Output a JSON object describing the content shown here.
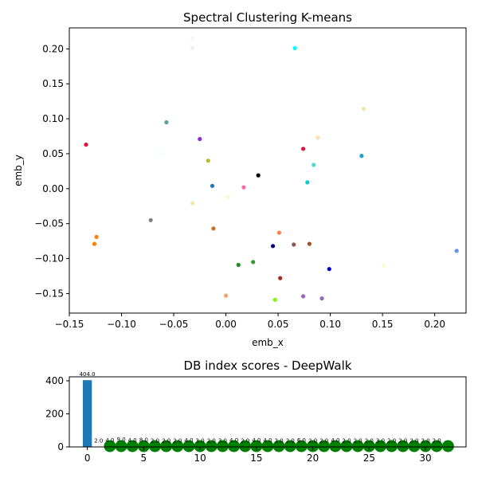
{
  "chart_data": [
    {
      "type": "scatter",
      "title": "Spectral Clustering K-means",
      "xlabel": "emb_x",
      "ylabel": "emb_y",
      "xlim": [
        -0.15,
        0.23
      ],
      "ylim": [
        -0.178,
        0.23
      ],
      "xticks": [
        -0.15,
        -0.1,
        -0.05,
        0.0,
        0.05,
        0.1,
        0.15,
        0.2
      ],
      "xtick_labels": [
        "−0.15",
        "−0.10",
        "−0.05",
        "0.00",
        "0.05",
        "0.10",
        "0.15",
        "0.20"
      ],
      "yticks": [
        -0.15,
        -0.1,
        -0.05,
        0.0,
        0.05,
        0.1,
        0.15,
        0.2
      ],
      "ytick_labels": [
        "−0.15",
        "−0.10",
        "−0.05",
        "0.00",
        "0.05",
        "0.10",
        "0.15",
        "0.20"
      ],
      "grid": false,
      "points": [
        {
          "x": -0.032,
          "y": 0.215,
          "color": "#f5f5f5"
        },
        {
          "x": -0.032,
          "y": 0.201,
          "color": "#f0f0f0"
        },
        {
          "x": 0.066,
          "y": 0.201,
          "color": "#00ffff"
        },
        {
          "x": 0.132,
          "y": 0.114,
          "color": "#eee8aa"
        },
        {
          "x": -0.057,
          "y": 0.095,
          "color": "#5f9ea0"
        },
        {
          "x": -0.134,
          "y": 0.063,
          "color": "#dc143c"
        },
        {
          "x": -0.025,
          "y": 0.071,
          "color": "#8a2be2"
        },
        {
          "x": 0.088,
          "y": 0.073,
          "color": "#ffdead"
        },
        {
          "x": 0.074,
          "y": 0.057,
          "color": "#dc143c"
        },
        {
          "x": -0.063,
          "y": 0.051,
          "color": "#f0ffff"
        },
        {
          "x": 0.13,
          "y": 0.047,
          "color": "#1fa0d0"
        },
        {
          "x": -0.017,
          "y": 0.04,
          "color": "#bdb720"
        },
        {
          "x": 0.084,
          "y": 0.034,
          "color": "#40e0d0"
        },
        {
          "x": 0.031,
          "y": 0.019,
          "color": "#000000"
        },
        {
          "x": 0.078,
          "y": 0.009,
          "color": "#00ced1"
        },
        {
          "x": -0.013,
          "y": 0.004,
          "color": "#1f77b4"
        },
        {
          "x": 0.017,
          "y": 0.002,
          "color": "#ff69b4"
        },
        {
          "x": 0.002,
          "y": -0.012,
          "color": "#fffacd"
        },
        {
          "x": -0.032,
          "y": -0.021,
          "color": "#eee8aa"
        },
        {
          "x": -0.072,
          "y": -0.045,
          "color": "#808080"
        },
        {
          "x": -0.012,
          "y": -0.057,
          "color": "#d2691e"
        },
        {
          "x": 0.051,
          "y": -0.063,
          "color": "#ff7f50"
        },
        {
          "x": -0.124,
          "y": -0.069,
          "color": "#ff7f0e"
        },
        {
          "x": -0.126,
          "y": -0.079,
          "color": "#ff7f0e"
        },
        {
          "x": 0.065,
          "y": -0.08,
          "color": "#8c564b"
        },
        {
          "x": 0.08,
          "y": -0.079,
          "color": "#a0522d"
        },
        {
          "x": 0.045,
          "y": -0.082,
          "color": "#000080"
        },
        {
          "x": 0.221,
          "y": -0.089,
          "color": "#6495ed"
        },
        {
          "x": 0.026,
          "y": -0.105,
          "color": "#2ca02c"
        },
        {
          "x": 0.012,
          "y": -0.109,
          "color": "#228b22"
        },
        {
          "x": 0.151,
          "y": -0.11,
          "color": "#fffacd"
        },
        {
          "x": 0.099,
          "y": -0.115,
          "color": "#0000cd"
        },
        {
          "x": 0.052,
          "y": -0.128,
          "color": "#b22222"
        },
        {
          "x": 0.0,
          "y": -0.153,
          "color": "#f4a460"
        },
        {
          "x": 0.074,
          "y": -0.154,
          "color": "#9467bd"
        },
        {
          "x": 0.092,
          "y": -0.157,
          "color": "#9467bd"
        },
        {
          "x": 0.047,
          "y": -0.159,
          "color": "#7cfc00"
        }
      ]
    },
    {
      "type": "bar",
      "title": "DB index scores - DeepWalk",
      "xlim": [
        -1.6,
        33.6
      ],
      "ylim": [
        0,
        424
      ],
      "xticks": [
        0,
        5,
        10,
        15,
        20,
        25,
        30
      ],
      "xtick_labels": [
        "0",
        "5",
        "10",
        "15",
        "20",
        "25",
        "30"
      ],
      "yticks": [
        0,
        200,
        400
      ],
      "ytick_labels": [
        "0",
        "200",
        "400"
      ],
      "bar_color": "#1f77b4",
      "marker_color": "#008000",
      "x": [
        0,
        1,
        2,
        3,
        4,
        5,
        6,
        7,
        8,
        9,
        10,
        11,
        12,
        13,
        14,
        15,
        16,
        17,
        18,
        19,
        20,
        21,
        22,
        23,
        24,
        25,
        26,
        27,
        28,
        29,
        30,
        31,
        32
      ],
      "values": [
        404.0,
        2.0,
        4.0,
        9.0,
        4.0,
        8.0,
        2.0,
        2.0,
        2.0,
        4.0,
        3.0,
        2.0,
        3.0,
        4.0,
        2.0,
        4.0,
        4.0,
        2.0,
        2.0,
        6.0,
        2.0,
        2.0,
        4.0,
        2.0,
        2.0,
        2.0,
        3.0,
        2.0,
        2.0,
        2.0,
        2.0,
        2.0,
        2.0
      ],
      "data_labels": [
        "404.0",
        "2.0",
        "4.0",
        "9.0",
        "4.0",
        "8.0",
        "2.0",
        "2.0",
        "2.0",
        "4.0",
        "3.0",
        "2.0",
        "3.0",
        "4.0",
        "2.0",
        "4.0",
        "4.0",
        "2.0",
        "2.0",
        "6.0",
        "2.0",
        "2.0",
        "4.0",
        "2.0",
        "2.0",
        "2.0",
        "3.0",
        "2.0",
        "2.0",
        "2.0",
        "2.0",
        "2.0",
        ""
      ]
    }
  ]
}
